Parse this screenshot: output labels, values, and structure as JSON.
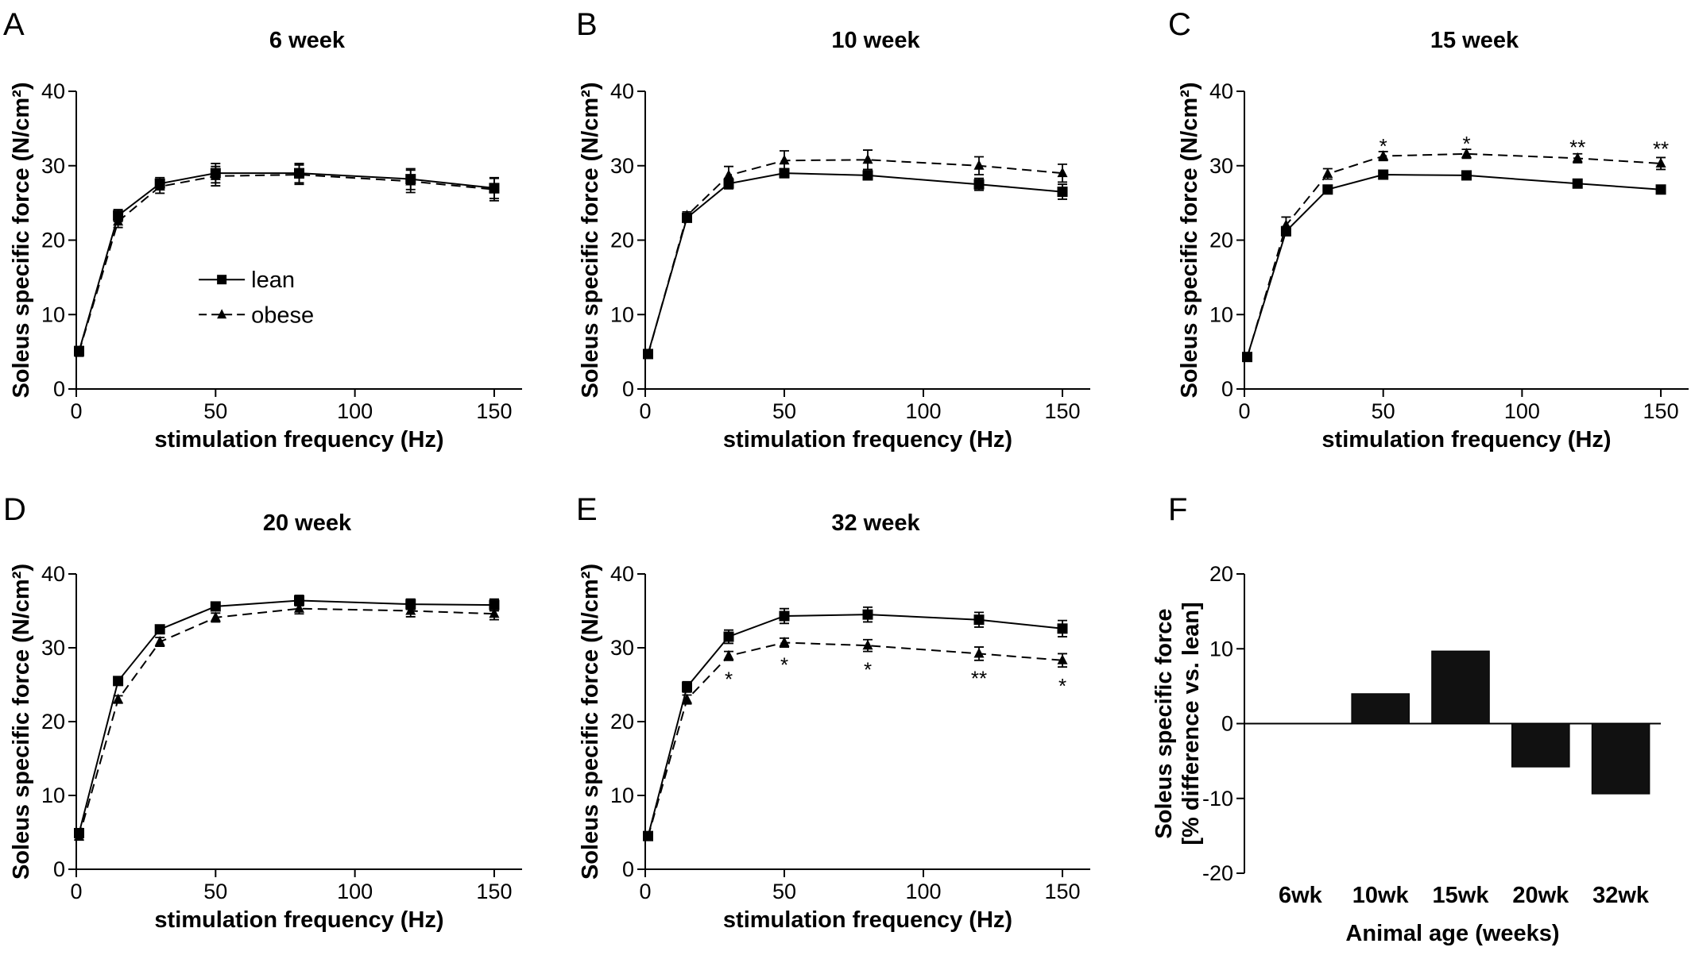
{
  "chart_data": [
    {
      "panel": "A",
      "type": "line",
      "title": "6 week",
      "xlabel": "stimulation frequency (Hz)",
      "ylabel": "Soleus specific force (N/cm²)",
      "xlim": [
        0,
        160
      ],
      "ylim": [
        0,
        40
      ],
      "xticks": [
        0,
        50,
        100,
        150
      ],
      "yticks": [
        0,
        10,
        20,
        30,
        40
      ],
      "x": [
        1,
        15,
        30,
        50,
        80,
        120,
        150
      ],
      "series": [
        {
          "name": "lean",
          "style": "solid",
          "marker": "square",
          "values": [
            5.1,
            23.3,
            27.6,
            29.0,
            29.0,
            28.2,
            27.0
          ],
          "errors": [
            0.6,
            0.8,
            0.8,
            1.3,
            1.3,
            1.4,
            1.4
          ]
        },
        {
          "name": "obese",
          "style": "dashed",
          "marker": "triangle",
          "values": [
            5.0,
            22.5,
            27.2,
            28.6,
            28.8,
            27.9,
            26.8
          ],
          "errors": [
            0.6,
            0.8,
            0.9,
            1.3,
            1.3,
            1.5,
            1.5
          ]
        }
      ],
      "legend": {
        "placement": "center",
        "entries": [
          "lean",
          "obese"
        ]
      },
      "annotations": []
    },
    {
      "panel": "B",
      "type": "line",
      "title": "10 week",
      "xlabel": "stimulation frequency (Hz)",
      "ylabel": "Soleus specific force (N/cm²)",
      "xlim": [
        0,
        160
      ],
      "ylim": [
        0,
        40
      ],
      "xticks": [
        0,
        50,
        100,
        150
      ],
      "yticks": [
        0,
        10,
        20,
        30,
        40
      ],
      "x": [
        1,
        15,
        30,
        50,
        80,
        120,
        150
      ],
      "series": [
        {
          "name": "lean",
          "style": "solid",
          "marker": "square",
          "values": [
            4.7,
            23.0,
            27.6,
            29.0,
            28.7,
            27.5,
            26.5
          ],
          "errors": [
            0.4,
            0.5,
            0.7,
            0.6,
            0.6,
            0.8,
            1.0
          ]
        },
        {
          "name": "obese",
          "style": "dashed",
          "marker": "triangle",
          "values": [
            4.6,
            23.3,
            28.7,
            30.7,
            30.8,
            30.0,
            29.0
          ],
          "errors": [
            0.4,
            0.5,
            1.2,
            1.3,
            1.3,
            1.2,
            1.2
          ]
        }
      ],
      "annotations": []
    },
    {
      "panel": "C",
      "type": "line",
      "title": "15 week",
      "xlabel": "stimulation frequency (Hz)",
      "ylabel": "Soleus specific force (N/cm²)",
      "xlim": [
        0,
        160
      ],
      "ylim": [
        0,
        40
      ],
      "xticks": [
        0,
        50,
        100,
        150
      ],
      "yticks": [
        0,
        10,
        20,
        30,
        40
      ],
      "x": [
        1,
        15,
        30,
        50,
        80,
        120,
        150
      ],
      "series": [
        {
          "name": "lean",
          "style": "solid",
          "marker": "square",
          "values": [
            4.3,
            21.2,
            26.8,
            28.8,
            28.7,
            27.6,
            26.8
          ],
          "errors": [
            0.4,
            0.6,
            0.5,
            0.5,
            0.5,
            0.5,
            0.5
          ]
        },
        {
          "name": "obese",
          "style": "dashed",
          "marker": "triangle",
          "values": [
            4.2,
            22.0,
            28.9,
            31.3,
            31.6,
            31.0,
            30.3
          ],
          "errors": [
            0.4,
            1.1,
            0.7,
            0.6,
            0.6,
            0.6,
            0.8
          ]
        }
      ],
      "annotations": [
        {
          "x": 50,
          "y": 33.2,
          "text": "*"
        },
        {
          "x": 80,
          "y": 33.5,
          "text": "*"
        },
        {
          "x": 120,
          "y": 33.0,
          "text": "**"
        },
        {
          "x": 150,
          "y": 32.8,
          "text": "**"
        }
      ]
    },
    {
      "panel": "D",
      "type": "line",
      "title": "20 week",
      "xlabel": "stimulation frequency (Hz)",
      "ylabel": "Soleus specific force (N/cm²)",
      "xlim": [
        0,
        160
      ],
      "ylim": [
        0,
        40
      ],
      "xticks": [
        0,
        50,
        100,
        150
      ],
      "yticks": [
        0,
        10,
        20,
        30,
        40
      ],
      "x": [
        1,
        15,
        30,
        50,
        80,
        120,
        150
      ],
      "series": [
        {
          "name": "lean",
          "style": "solid",
          "marker": "square",
          "values": [
            4.9,
            25.5,
            32.5,
            35.6,
            36.4,
            35.9,
            35.8
          ],
          "errors": [
            0.4,
            0.4,
            0.4,
            0.5,
            0.7,
            0.7,
            0.8
          ]
        },
        {
          "name": "obese",
          "style": "dashed",
          "marker": "triangle",
          "values": [
            4.4,
            23.0,
            30.8,
            34.1,
            35.3,
            35.0,
            34.6
          ],
          "errors": [
            0.4,
            0.5,
            0.6,
            0.6,
            0.7,
            0.8,
            0.8
          ]
        }
      ],
      "annotations": []
    },
    {
      "panel": "E",
      "type": "line",
      "title": "32 week",
      "xlabel": "stimulation frequency (Hz)",
      "ylabel": "Soleus specific force (N/cm²)",
      "xlim": [
        0,
        160
      ],
      "ylim": [
        0,
        40
      ],
      "xticks": [
        0,
        50,
        100,
        150
      ],
      "yticks": [
        0,
        10,
        20,
        30,
        40
      ],
      "x": [
        1,
        15,
        30,
        50,
        80,
        120,
        150
      ],
      "series": [
        {
          "name": "lean",
          "style": "solid",
          "marker": "square",
          "values": [
            4.5,
            24.7,
            31.5,
            34.3,
            34.5,
            33.8,
            32.6
          ],
          "errors": [
            0.4,
            0.7,
            0.9,
            1.0,
            1.0,
            1.0,
            1.1
          ]
        },
        {
          "name": "obese",
          "style": "dashed",
          "marker": "triangle",
          "values": [
            4.4,
            23.0,
            28.9,
            30.7,
            30.3,
            29.2,
            28.3
          ],
          "errors": [
            0.4,
            0.6,
            0.6,
            0.6,
            0.8,
            0.9,
            0.9
          ]
        }
      ],
      "annotations": [
        {
          "x": 30,
          "y": 26.3,
          "text": "*"
        },
        {
          "x": 50,
          "y": 28.2,
          "text": "*"
        },
        {
          "x": 80,
          "y": 27.6,
          "text": "*"
        },
        {
          "x": 120,
          "y": 26.4,
          "text": "**"
        },
        {
          "x": 150,
          "y": 25.4,
          "text": "*"
        }
      ]
    },
    {
      "panel": "F",
      "type": "bar",
      "title": "",
      "xlabel": "Animal age (weeks)",
      "ylabel": "Soleus specific force [% difference vs. lean]",
      "ylabel_lines": [
        "Soleus specific force",
        "[% difference vs. lean]"
      ],
      "ylim": [
        -20,
        20
      ],
      "yticks": [
        -20,
        -10,
        0,
        10,
        20
      ],
      "categories": [
        "6wk",
        "10wk",
        "15wk",
        "20wk",
        "32wk"
      ],
      "values": [
        0,
        4.0,
        9.7,
        -5.8,
        -9.4
      ]
    }
  ]
}
